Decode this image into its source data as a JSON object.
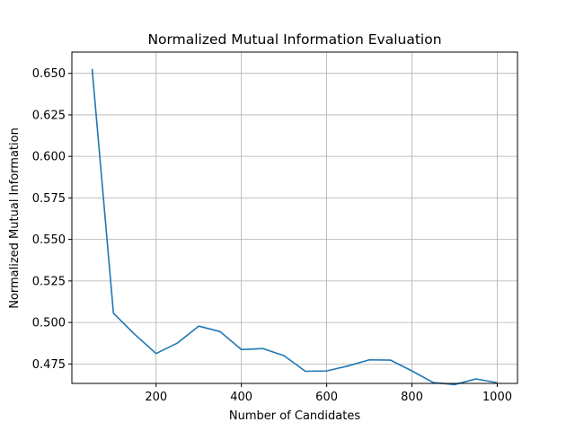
{
  "chart_data": {
    "type": "line",
    "title": "Normalized Mutual Information Evaluation",
    "xlabel": "Number of Candidates",
    "ylabel": "Normalized Mutual Information",
    "xlim": [
      2.5,
      1047.5
    ],
    "ylim": [
      0.4633,
      0.6628
    ],
    "xticks": [
      200,
      400,
      600,
      800,
      1000
    ],
    "yticks": [
      0.475,
      0.5,
      0.525,
      0.55,
      0.575,
      0.6,
      0.625,
      0.65
    ],
    "grid": true,
    "series": [
      {
        "color": "#1f77b4",
        "x": [
          50,
          100,
          150,
          200,
          250,
          300,
          350,
          400,
          450,
          500,
          550,
          600,
          650,
          700,
          750,
          800,
          850,
          900,
          950,
          1000
        ],
        "y": [
          0.6527,
          0.5056,
          0.4928,
          0.4813,
          0.4876,
          0.4978,
          0.4945,
          0.4837,
          0.4843,
          0.48,
          0.4706,
          0.4708,
          0.4738,
          0.4775,
          0.4773,
          0.4708,
          0.4638,
          0.4626,
          0.466,
          0.4637
        ]
      }
    ]
  }
}
